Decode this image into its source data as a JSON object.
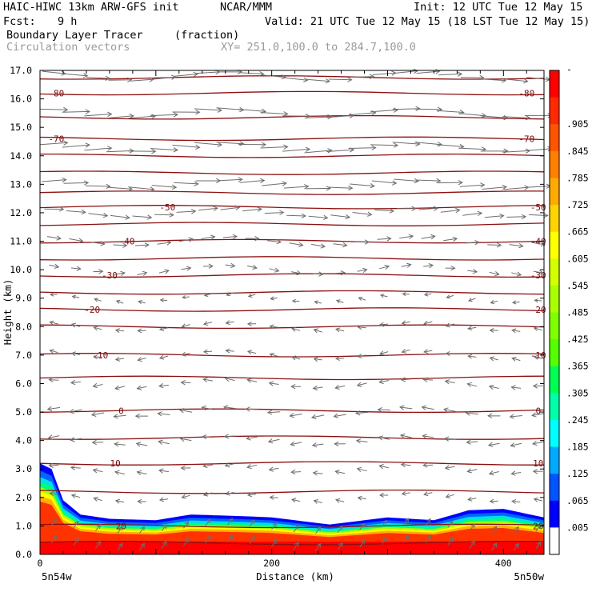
{
  "header": {
    "model": "HAIC-HIWC 13km ARW-GFS init",
    "org": "NCAR/MMM",
    "init": "Init: 12 UTC Tue 12 May 15",
    "fcst_label": "Fcst:",
    "fcst_value": "9 h",
    "valid": "Valid: 21 UTC Tue 12 May 15 (18 LST Tue 12 May 15)",
    "field_name": "Boundary Layer Tracer",
    "field_units": "(fraction)",
    "overlay_name": "Circulation vectors",
    "xy_range": "XY= 251.0,100.0 to 284.7,100.0"
  },
  "axes": {
    "ylabel": "Height (km)",
    "xlabel": "Distance (km)",
    "left_corner": "5n54w",
    "right_corner": "5n50w"
  },
  "colors": {
    "contour": "#8b1010",
    "vector": "#6e6e6e"
  },
  "chart_data": {
    "type": "heatmap",
    "description_fields": [
      "Boundary Layer Tracer (fraction) filled",
      "temperature contours",
      "circulation vectors"
    ],
    "x_range": [
      0,
      435
    ],
    "y_range": [
      0,
      17
    ],
    "x_ticks": [
      0,
      200,
      400
    ],
    "y_ticks": [
      "0.0",
      "1.0",
      "2.0",
      "3.0",
      "4.0",
      "5.0",
      "6.0",
      "7.0",
      "8.0",
      "9.0",
      "10.0",
      "11.0",
      "12.0",
      "13.0",
      "14.0",
      "15.0",
      "16.0",
      "17.0"
    ],
    "colorbar": {
      "labels": [
        "-",
        ".905",
        ".845",
        ".785",
        ".725",
        ".665",
        ".605",
        ".545",
        ".485",
        ".425",
        ".365",
        ".305",
        ".245",
        ".185",
        ".125",
        ".065",
        ".005"
      ],
      "colors": [
        "#ff0000",
        "#ff2a00",
        "#ff5500",
        "#ff7f00",
        "#ffaa00",
        "#ffd400",
        "#ffff00",
        "#d4ff00",
        "#aaff00",
        "#7fff00",
        "#55ff00",
        "#00ff55",
        "#00ffaa",
        "#00ffff",
        "#00aaff",
        "#0055ff",
        "#0000ff",
        "#ffffff"
      ]
    },
    "contours": [
      {
        "label": "-80",
        "height_km": 16.2
      },
      {
        "label": "-70",
        "height_km": 14.6
      },
      {
        "label": "-50",
        "height_km": 12.2
      },
      {
        "label": "-40",
        "height_km": 11.0
      },
      {
        "label": "-30",
        "height_km": 9.8
      },
      {
        "label": "-20",
        "height_km": 8.6
      },
      {
        "label": "-10",
        "height_km": 7.0
      },
      {
        "label": "0",
        "height_km": 5.05
      },
      {
        "label": "10",
        "height_km": 3.2
      },
      {
        "label": "20",
        "height_km": 1.0
      }
    ],
    "unlabeled_contours_km": [
      16.75,
      15.35,
      14.0,
      13.4,
      12.7,
      11.6,
      10.4,
      9.2,
      8.0,
      6.2,
      4.1,
      2.2,
      0.4
    ],
    "tracer_surface": [
      {
        "x": 0,
        "top_km": 3.2
      },
      {
        "x": 10,
        "top_km": 3.0
      },
      {
        "x": 20,
        "top_km": 1.9
      },
      {
        "x": 35,
        "top_km": 1.4
      },
      {
        "x": 60,
        "top_km": 1.25
      },
      {
        "x": 100,
        "top_km": 1.2
      },
      {
        "x": 130,
        "top_km": 1.4
      },
      {
        "x": 170,
        "top_km": 1.35
      },
      {
        "x": 200,
        "top_km": 1.3
      },
      {
        "x": 250,
        "top_km": 1.05
      },
      {
        "x": 300,
        "top_km": 1.3
      },
      {
        "x": 340,
        "top_km": 1.2
      },
      {
        "x": 370,
        "top_km": 1.55
      },
      {
        "x": 400,
        "top_km": 1.6
      },
      {
        "x": 435,
        "top_km": 1.3
      }
    ],
    "wind_layers": [
      {
        "z_km": 16.8,
        "dir": 1,
        "strength": 0.85
      },
      {
        "z_km": 15.5,
        "dir": 1,
        "strength": 1.0
      },
      {
        "z_km": 14.3,
        "dir": 1,
        "strength": 1.0
      },
      {
        "z_km": 13.0,
        "dir": 1,
        "strength": 0.9
      },
      {
        "z_km": 12.0,
        "dir": 1,
        "strength": 0.7
      },
      {
        "z_km": 11.0,
        "dir": 1,
        "strength": 0.5
      },
      {
        "z_km": 10.0,
        "dir": 1,
        "strength": 0.35
      },
      {
        "z_km": 9.0,
        "dir": -1,
        "strength": 0.25
      },
      {
        "z_km": 8.0,
        "dir": -1,
        "strength": 0.3
      },
      {
        "z_km": 7.0,
        "dir": -1,
        "strength": 0.3
      },
      {
        "z_km": 6.0,
        "dir": -1,
        "strength": 0.35
      },
      {
        "z_km": 5.0,
        "dir": -1,
        "strength": 0.45
      },
      {
        "z_km": 4.0,
        "dir": -1,
        "strength": 0.4
      },
      {
        "z_km": 3.0,
        "dir": -1,
        "strength": 0.35
      },
      {
        "z_km": 2.0,
        "dir": -1,
        "strength": 0.3
      },
      {
        "z_km": 1.0,
        "dir": 0,
        "strength": 0.45
      },
      {
        "z_km": 0.4,
        "dir": 0,
        "strength": 0.5
      }
    ]
  }
}
